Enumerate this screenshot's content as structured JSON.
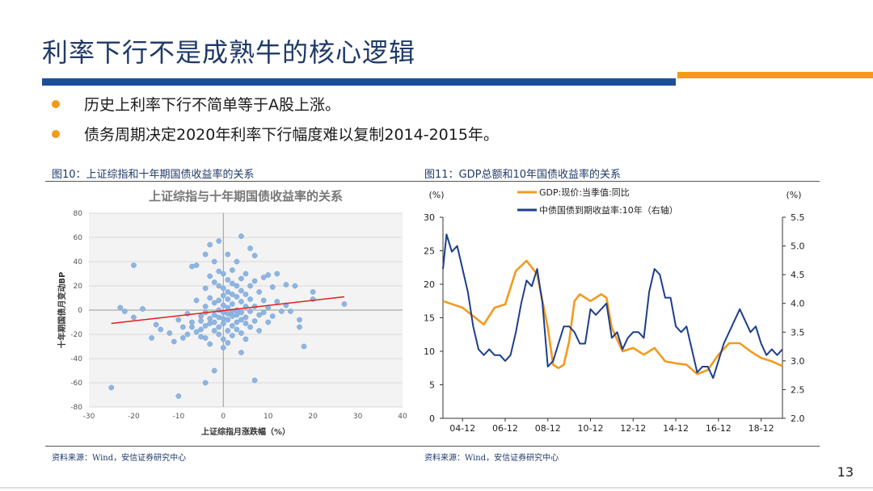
{
  "page": {
    "title": "利率下行不是成熟牛的核心逻辑",
    "bullets": [
      "历史上利率下行不简单等于A股上涨。",
      "债务周期决定2020年利率下行幅度难以复制2014-2015年。"
    ],
    "page_number": "13",
    "accent_blue": "#1d4e9a",
    "accent_orange": "#f39a1e"
  },
  "fig10": {
    "caption": "图10：上证综指和十年期国债收益率的关系",
    "source": "资料来源：Wind，安信证券研究中心"
  },
  "fig11": {
    "caption": "图11：GDP总额和10年国债收益率的关系",
    "source": "资料来源：Wind，安信证券研究中心"
  },
  "chart_data": [
    {
      "type": "scatter",
      "title": "上证综指与十年期国债收益率的关系",
      "xlabel": "上证综指月涨跌幅（%）",
      "ylabel": "十年期国债月变动BP",
      "xlim": [
        -30,
        40
      ],
      "ylim": [
        -80,
        80
      ],
      "xticks": [
        "-30",
        "-20",
        "-10",
        "0",
        "10",
        "20",
        "30",
        "40"
      ],
      "yticks": [
        "80",
        "60",
        "40",
        "20",
        "0",
        "-20",
        "-40",
        "-60",
        "-80"
      ],
      "grid": true,
      "point_color": "#8fb6e2",
      "trendline": {
        "x": [
          -25,
          27
        ],
        "y": [
          -11,
          11
        ],
        "color": "#e02020"
      },
      "points": [
        [
          -25,
          -64
        ],
        [
          -23,
          2
        ],
        [
          -22,
          -1
        ],
        [
          -20,
          -6
        ],
        [
          -20,
          37
        ],
        [
          -18,
          1
        ],
        [
          -16,
          -23
        ],
        [
          -15,
          -12
        ],
        [
          -14,
          -16
        ],
        [
          -12,
          -19
        ],
        [
          -11,
          -26
        ],
        [
          -10,
          -71
        ],
        [
          -10,
          -8
        ],
        [
          -9,
          -14
        ],
        [
          -9,
          -23
        ],
        [
          -8,
          -3
        ],
        [
          -8,
          -20
        ],
        [
          -7,
          36
        ],
        [
          -7,
          -10
        ],
        [
          -7,
          -14
        ],
        [
          -6,
          37
        ],
        [
          -6,
          8
        ],
        [
          -6,
          -18
        ],
        [
          -5,
          -5
        ],
        [
          -5,
          -9
        ],
        [
          -5,
          -16
        ],
        [
          -5,
          -22
        ],
        [
          -4,
          46
        ],
        [
          -4,
          18
        ],
        [
          -4,
          3
        ],
        [
          -4,
          -2
        ],
        [
          -4,
          -13
        ],
        [
          -4,
          -23
        ],
        [
          -4,
          -60
        ],
        [
          -3,
          54
        ],
        [
          -3,
          28
        ],
        [
          -3,
          10
        ],
        [
          -3,
          -7
        ],
        [
          -3,
          -11
        ],
        [
          -3,
          -28
        ],
        [
          -2,
          40
        ],
        [
          -2,
          23
        ],
        [
          -2,
          6
        ],
        [
          -2,
          -4
        ],
        [
          -2,
          -10
        ],
        [
          -2,
          -17
        ],
        [
          -2,
          -50
        ],
        [
          -1,
          57
        ],
        [
          -1,
          32
        ],
        [
          -1,
          20
        ],
        [
          -1,
          8
        ],
        [
          -1,
          0
        ],
        [
          -1,
          -6
        ],
        [
          -1,
          -14
        ],
        [
          -1,
          -20
        ],
        [
          0,
          30
        ],
        [
          0,
          18
        ],
        [
          0,
          12
        ],
        [
          0,
          4
        ],
        [
          0,
          -2
        ],
        [
          0,
          -7
        ],
        [
          0,
          -11
        ],
        [
          0,
          -24
        ],
        [
          0,
          -31
        ],
        [
          1,
          46
        ],
        [
          1,
          25
        ],
        [
          1,
          15
        ],
        [
          1,
          9
        ],
        [
          1,
          2
        ],
        [
          1,
          -3
        ],
        [
          1,
          -8
        ],
        [
          1,
          -17
        ],
        [
          1,
          -27
        ],
        [
          2,
          33
        ],
        [
          2,
          22
        ],
        [
          2,
          13
        ],
        [
          2,
          5
        ],
        [
          2,
          -1
        ],
        [
          2,
          -5
        ],
        [
          2,
          -13
        ],
        [
          2,
          -21
        ],
        [
          3,
          40
        ],
        [
          3,
          20
        ],
        [
          3,
          11
        ],
        [
          3,
          0
        ],
        [
          3,
          -4
        ],
        [
          3,
          -10
        ],
        [
          3,
          -16
        ],
        [
          4,
          61
        ],
        [
          4,
          26
        ],
        [
          4,
          16
        ],
        [
          4,
          7
        ],
        [
          4,
          -2
        ],
        [
          4,
          -8
        ],
        [
          4,
          -19
        ],
        [
          4,
          -35
        ],
        [
          5,
          30
        ],
        [
          5,
          13
        ],
        [
          5,
          3
        ],
        [
          5,
          -6
        ],
        [
          5,
          -11
        ],
        [
          5,
          -24
        ],
        [
          6,
          51
        ],
        [
          6,
          20
        ],
        [
          6,
          9
        ],
        [
          6,
          -1
        ],
        [
          6,
          -14
        ],
        [
          7,
          45
        ],
        [
          7,
          24
        ],
        [
          7,
          3
        ],
        [
          7,
          -9
        ],
        [
          7,
          -58
        ],
        [
          8,
          15
        ],
        [
          8,
          -4
        ],
        [
          8,
          -17
        ],
        [
          9,
          27
        ],
        [
          9,
          8
        ],
        [
          9,
          -2
        ],
        [
          10,
          29
        ],
        [
          10,
          2
        ],
        [
          10,
          -10
        ],
        [
          11,
          19
        ],
        [
          11,
          -5
        ],
        [
          12,
          30
        ],
        [
          12,
          7
        ],
        [
          13,
          -1
        ],
        [
          14,
          21
        ],
        [
          14,
          4
        ],
        [
          15,
          -1
        ],
        [
          16,
          20
        ],
        [
          17,
          -8
        ],
        [
          17,
          -14
        ],
        [
          18,
          -30
        ],
        [
          20,
          15
        ],
        [
          20,
          9
        ],
        [
          27,
          5
        ]
      ]
    },
    {
      "type": "line",
      "title": "",
      "x_tick_labels": [
        "04-12",
        "06-12",
        "08-12",
        "10-12",
        "12-12",
        "14-12",
        "16-12",
        "18-12"
      ],
      "x_range": [
        "2004-01",
        "2019-12"
      ],
      "left_axis": {
        "unit": "(%)",
        "range": [
          0,
          30
        ],
        "ticks": [
          "0",
          "5",
          "10",
          "15",
          "20",
          "25",
          "30"
        ]
      },
      "right_axis": {
        "unit": "(%)",
        "range": [
          2.0,
          5.5
        ],
        "ticks": [
          "2.0",
          "2.5",
          "3.0",
          "3.5",
          "4.0",
          "4.5",
          "5.0",
          "5.5"
        ]
      },
      "series": [
        {
          "name": "GDP:现价:当季值:同比",
          "axis": "left",
          "color": "#f39a1e",
          "x": [
            "2004-01",
            "2004-12",
            "2005-12",
            "2006-06",
            "2006-12",
            "2007-06",
            "2007-12",
            "2008-06",
            "2008-12",
            "2009-03",
            "2009-06",
            "2009-09",
            "2009-12",
            "2010-03",
            "2010-06",
            "2010-12",
            "2011-06",
            "2011-09",
            "2011-12",
            "2012-06",
            "2012-12",
            "2013-06",
            "2013-12",
            "2014-06",
            "2014-12",
            "2015-06",
            "2015-12",
            "2016-06",
            "2016-12",
            "2017-06",
            "2017-12",
            "2018-06",
            "2018-12",
            "2019-06",
            "2019-12"
          ],
          "y": [
            17.5,
            16.5,
            14.0,
            16.5,
            17.0,
            22.0,
            23.5,
            21.5,
            13.5,
            8.0,
            7.5,
            8.0,
            11.5,
            17.5,
            18.5,
            17.5,
            18.5,
            18.0,
            13.5,
            10.0,
            10.5,
            9.5,
            10.5,
            8.5,
            8.2,
            8.0,
            6.6,
            7.2,
            9.5,
            11.2,
            11.2,
            10.0,
            9.0,
            8.5,
            7.8
          ]
        },
        {
          "name": "中债国债到期收益率:10年（右轴）",
          "axis": "right",
          "color": "#1d3e8a",
          "x": [
            "2004-01",
            "2004-03",
            "2004-06",
            "2004-09",
            "2004-12",
            "2005-03",
            "2005-06",
            "2005-09",
            "2005-12",
            "2006-03",
            "2006-06",
            "2006-09",
            "2006-12",
            "2007-03",
            "2007-06",
            "2007-09",
            "2007-12",
            "2008-03",
            "2008-06",
            "2008-09",
            "2008-12",
            "2009-03",
            "2009-06",
            "2009-09",
            "2009-12",
            "2010-03",
            "2010-06",
            "2010-09",
            "2010-12",
            "2011-03",
            "2011-06",
            "2011-09",
            "2011-12",
            "2012-03",
            "2012-06",
            "2012-09",
            "2012-12",
            "2013-03",
            "2013-06",
            "2013-09",
            "2013-12",
            "2014-03",
            "2014-06",
            "2014-09",
            "2014-12",
            "2015-03",
            "2015-06",
            "2015-09",
            "2015-12",
            "2016-03",
            "2016-06",
            "2016-09",
            "2016-12",
            "2017-03",
            "2017-06",
            "2017-09",
            "2017-12",
            "2018-03",
            "2018-06",
            "2018-09",
            "2018-12",
            "2019-03",
            "2019-06",
            "2019-09",
            "2019-12"
          ],
          "y": [
            4.6,
            5.2,
            4.9,
            5.0,
            4.6,
            4.2,
            3.6,
            3.2,
            3.1,
            3.2,
            3.1,
            3.1,
            3.0,
            3.1,
            3.5,
            4.0,
            4.4,
            4.3,
            4.6,
            4.0,
            2.9,
            3.0,
            3.3,
            3.6,
            3.6,
            3.5,
            3.3,
            3.3,
            3.9,
            3.8,
            3.9,
            4.0,
            3.4,
            3.5,
            3.2,
            3.4,
            3.5,
            3.5,
            3.4,
            4.2,
            4.6,
            4.5,
            4.1,
            4.1,
            3.6,
            3.5,
            3.6,
            3.2,
            2.8,
            2.9,
            2.9,
            2.7,
            3.0,
            3.3,
            3.5,
            3.7,
            3.9,
            3.7,
            3.5,
            3.6,
            3.3,
            3.1,
            3.2,
            3.1,
            3.2
          ]
        }
      ]
    }
  ]
}
